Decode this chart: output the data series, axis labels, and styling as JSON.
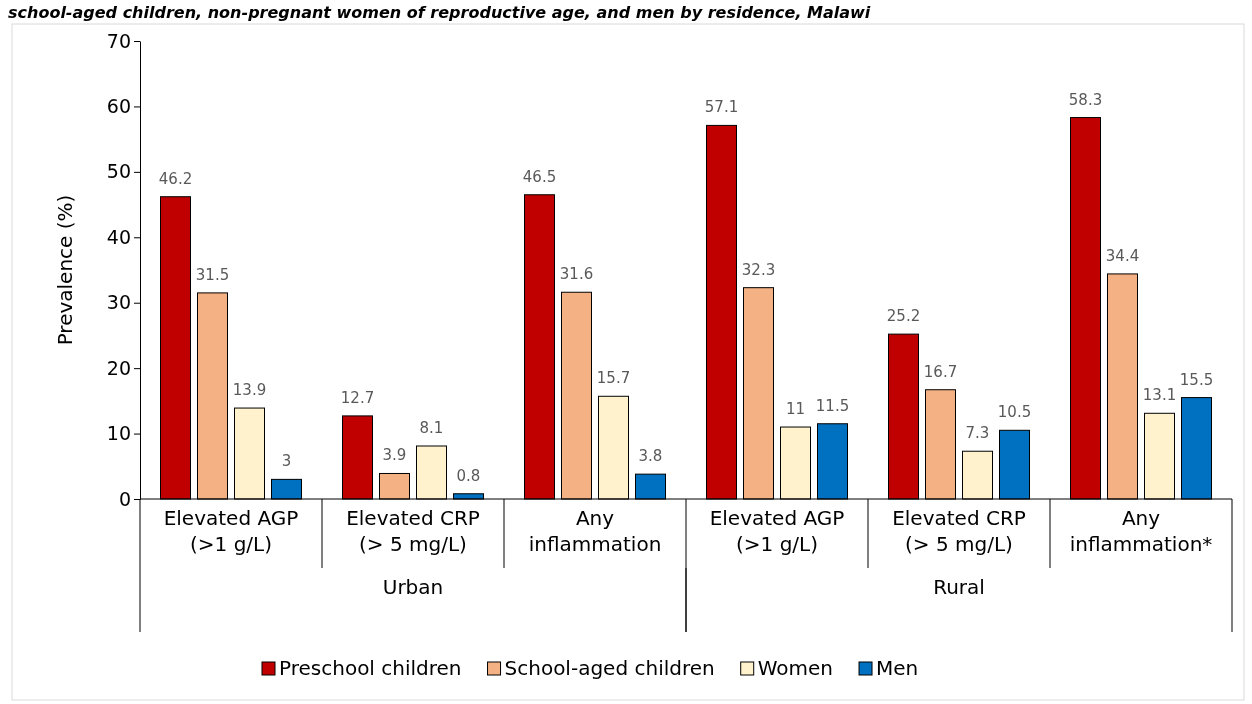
{
  "chart_data": {
    "type": "bar",
    "title": "school-aged children, non-pregnant women of reproductive age, and men by residence, Malawi",
    "ylabel": "Prevalence (%)",
    "categories": [
      "Elevated AGP\n(>1 g/L)",
      "Elevated CRP\n(> 5 mg/L)",
      "Any\ninflammation",
      "Elevated AGP\n(>1 g/L)",
      "Elevated CRP\n(> 5 mg/L)",
      "Any\ninflammation*"
    ],
    "annotations": [
      "Urban",
      "Rural"
    ],
    "series": [
      {
        "name": "Preschool children",
        "color": "#c00000",
        "values": [
          46.2,
          12.7,
          46.5,
          57.1,
          25.2,
          58.3
        ]
      },
      {
        "name": "School-aged children",
        "color": "#f4b183",
        "values": [
          31.5,
          3.9,
          31.6,
          32.3,
          16.7,
          34.4
        ]
      },
      {
        "name": "Women",
        "color": "#fff2cc",
        "values": [
          13.9,
          8.1,
          15.7,
          11,
          7.3,
          13.1
        ]
      },
      {
        "name": "Men",
        "color": "#0070c0",
        "values": [
          3,
          0.8,
          3.8,
          11.5,
          10.5,
          15.5
        ]
      }
    ],
    "ylim": [
      0,
      70
    ],
    "yticks": [
      0,
      10,
      20,
      30,
      40,
      50,
      60,
      70
    ],
    "data_labels": true,
    "legend": "bottom"
  }
}
